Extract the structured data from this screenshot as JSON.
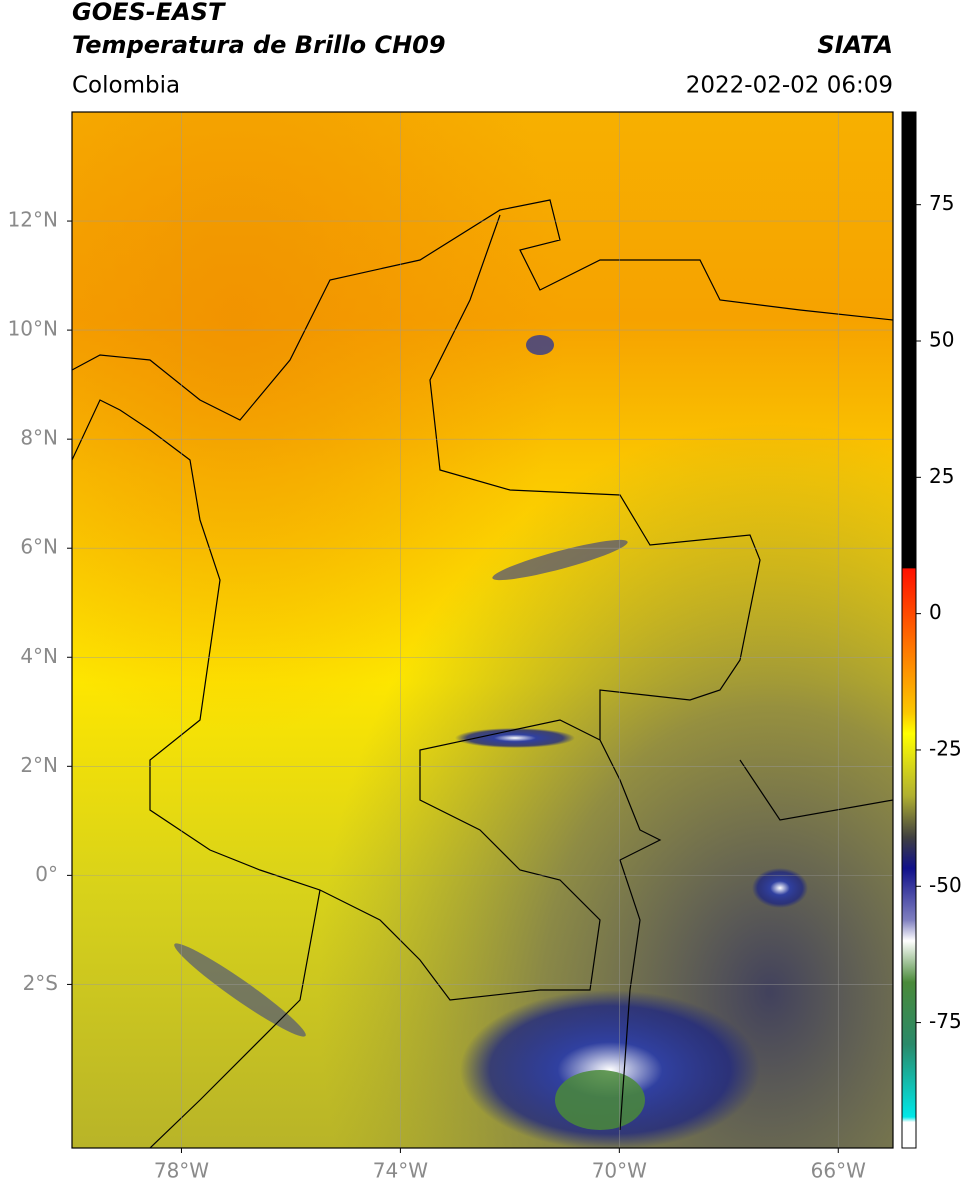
{
  "header": {
    "title": "GOES-EAST",
    "subtitle": "Temperatura de Brillo CH09",
    "source": "SIATA",
    "region": "Colombia",
    "datetime": "2022-02-02 06:09"
  },
  "map": {
    "lonlim": [
      -80,
      -65
    ],
    "latlim": [
      -5,
      14
    ],
    "grid": true,
    "lonticks": [
      {
        "value": -78,
        "label": "78°W"
      },
      {
        "value": -74,
        "label": "74°W"
      },
      {
        "value": -70,
        "label": "70°W"
      },
      {
        "value": -66,
        "label": "66°W"
      }
    ],
    "latticks": [
      {
        "value": 12,
        "label": "12°N"
      },
      {
        "value": 10,
        "label": "10°N"
      },
      {
        "value": 8,
        "label": "8°N"
      },
      {
        "value": 6,
        "label": "6°N"
      },
      {
        "value": 4,
        "label": "4°N"
      },
      {
        "value": 2,
        "label": "2°N"
      },
      {
        "value": 0,
        "label": "0°"
      },
      {
        "value": -2,
        "label": "2°S"
      }
    ]
  },
  "colorbar": {
    "lim": [
      -98,
      92
    ],
    "ticks": [
      75,
      50,
      25,
      0,
      -25,
      -50,
      -75
    ]
  }
}
